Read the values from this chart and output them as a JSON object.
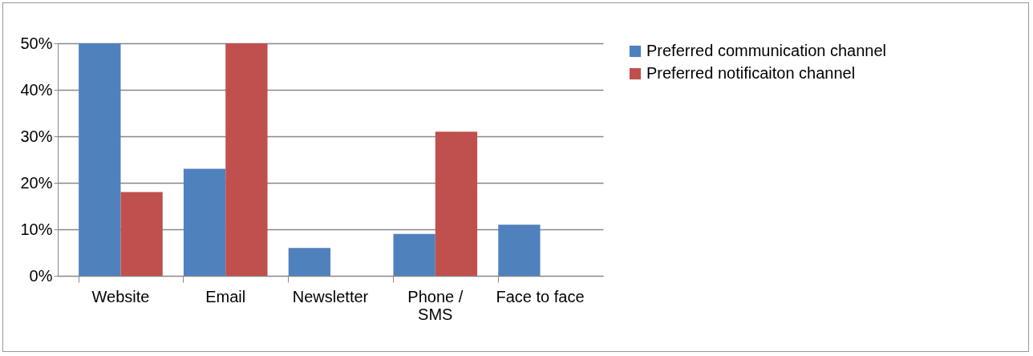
{
  "chart_data": {
    "type": "bar",
    "categories": [
      "Website",
      "Email",
      "Newsletter",
      "Phone / SMS",
      "Face to face"
    ],
    "series": [
      {
        "name": "Preferred communication channel",
        "color": "#4f81bd",
        "values": [
          50,
          23,
          6,
          9,
          11
        ]
      },
      {
        "name": "Preferred notificaiton channel",
        "color": "#c0504d",
        "values": [
          18,
          50,
          0,
          31,
          0
        ]
      }
    ],
    "ylim": [
      0,
      50
    ],
    "yticks": [
      {
        "value": 0,
        "label": "0%"
      },
      {
        "value": 10,
        "label": "10%"
      },
      {
        "value": 20,
        "label": "20%"
      },
      {
        "value": 30,
        "label": "30%"
      },
      {
        "value": 40,
        "label": "40%"
      },
      {
        "value": 50,
        "label": "50%"
      }
    ],
    "grid": "y",
    "legend": "right"
  }
}
